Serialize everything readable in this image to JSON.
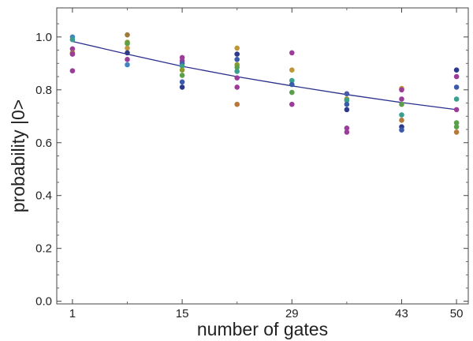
{
  "chart_data": {
    "type": "scatter",
    "xlabel": "number of gates",
    "ylabel": "probability |0>",
    "xlim": [
      -1,
      51.5
    ],
    "ylim": [
      -0.01,
      1.11
    ],
    "xticks": [
      1,
      15,
      29,
      43,
      50
    ],
    "xtick_labels": [
      "1",
      "15",
      "29",
      "43",
      "50"
    ],
    "yticks": [
      0.0,
      0.2,
      0.4,
      0.6,
      0.8,
      1.0
    ],
    "ytick_labels": [
      "0.0",
      "0.2",
      "0.4",
      "0.6",
      "0.8",
      "1.0"
    ],
    "grid": false,
    "fit_curve": {
      "x": [
        1,
        8,
        15,
        22,
        29,
        36,
        43,
        50
      ],
      "y": [
        0.983,
        0.935,
        0.889,
        0.85,
        0.815,
        0.782,
        0.752,
        0.725
      ],
      "color": "#2b2f8c"
    },
    "points": [
      {
        "x": 1,
        "y": 1.0,
        "color": "#3f86c2"
      },
      {
        "x": 1,
        "y": 0.99,
        "color": "#3a9e8f"
      },
      {
        "x": 1,
        "y": 0.955,
        "color": "#9c3c9a"
      },
      {
        "x": 1,
        "y": 0.94,
        "color": "#a07a3a"
      },
      {
        "x": 1,
        "y": 0.935,
        "color": "#9c3c9a"
      },
      {
        "x": 1,
        "y": 0.872,
        "color": "#9c3c9a"
      },
      {
        "x": 8,
        "y": 1.008,
        "color": "#a07a3a"
      },
      {
        "x": 8,
        "y": 0.98,
        "color": "#8a9a2a"
      },
      {
        "x": 8,
        "y": 0.975,
        "color": "#5aa04a"
      },
      {
        "x": 8,
        "y": 0.958,
        "color": "#c0963a"
      },
      {
        "x": 8,
        "y": 0.94,
        "color": "#2d3a8c"
      },
      {
        "x": 8,
        "y": 0.915,
        "color": "#9c3c9a"
      },
      {
        "x": 8,
        "y": 0.895,
        "color": "#3f86c2"
      },
      {
        "x": 15,
        "y": 0.922,
        "color": "#9c3c9a"
      },
      {
        "x": 15,
        "y": 0.91,
        "color": "#9c3c9a"
      },
      {
        "x": 15,
        "y": 0.9,
        "color": "#4a5aaa"
      },
      {
        "x": 15,
        "y": 0.89,
        "color": "#3a9e8f"
      },
      {
        "x": 15,
        "y": 0.875,
        "color": "#8a9a2a"
      },
      {
        "x": 15,
        "y": 0.855,
        "color": "#5aa04a"
      },
      {
        "x": 15,
        "y": 0.83,
        "color": "#3a5aaa"
      },
      {
        "x": 15,
        "y": 0.81,
        "color": "#2d3a8c"
      },
      {
        "x": 22,
        "y": 0.958,
        "color": "#c0963a"
      },
      {
        "x": 22,
        "y": 0.935,
        "color": "#2d3a8c"
      },
      {
        "x": 22,
        "y": 0.915,
        "color": "#3a5aaa"
      },
      {
        "x": 22,
        "y": 0.895,
        "color": "#8a9a2a"
      },
      {
        "x": 22,
        "y": 0.885,
        "color": "#5aa04a"
      },
      {
        "x": 22,
        "y": 0.87,
        "color": "#3a9e8f"
      },
      {
        "x": 22,
        "y": 0.845,
        "color": "#9c3c9a"
      },
      {
        "x": 22,
        "y": 0.81,
        "color": "#9c3c9a"
      },
      {
        "x": 22,
        "y": 0.745,
        "color": "#b8783a"
      },
      {
        "x": 29,
        "y": 0.94,
        "color": "#9c3c9a"
      },
      {
        "x": 29,
        "y": 0.875,
        "color": "#c0963a"
      },
      {
        "x": 29,
        "y": 0.835,
        "color": "#3a9e8f"
      },
      {
        "x": 29,
        "y": 0.82,
        "color": "#3a5aaa"
      },
      {
        "x": 29,
        "y": 0.79,
        "color": "#5aa04a"
      },
      {
        "x": 29,
        "y": 0.745,
        "color": "#9c3c9a"
      },
      {
        "x": 36,
        "y": 0.785,
        "color": "#4a5aaa"
      },
      {
        "x": 36,
        "y": 0.765,
        "color": "#8a9a2a"
      },
      {
        "x": 36,
        "y": 0.76,
        "color": "#3a9e8f"
      },
      {
        "x": 36,
        "y": 0.745,
        "color": "#3a5aaa"
      },
      {
        "x": 36,
        "y": 0.725,
        "color": "#2d3a8c"
      },
      {
        "x": 36,
        "y": 0.655,
        "color": "#9c3c9a"
      },
      {
        "x": 36,
        "y": 0.64,
        "color": "#9c3c9a"
      },
      {
        "x": 43,
        "y": 0.805,
        "color": "#c0963a"
      },
      {
        "x": 43,
        "y": 0.8,
        "color": "#9c3c9a"
      },
      {
        "x": 43,
        "y": 0.765,
        "color": "#9c3c9a"
      },
      {
        "x": 43,
        "y": 0.745,
        "color": "#5aa04a"
      },
      {
        "x": 43,
        "y": 0.705,
        "color": "#3a9e8f"
      },
      {
        "x": 43,
        "y": 0.685,
        "color": "#b8783a"
      },
      {
        "x": 43,
        "y": 0.66,
        "color": "#2d3a8c"
      },
      {
        "x": 43,
        "y": 0.648,
        "color": "#3a5aaa"
      },
      {
        "x": 50,
        "y": 0.875,
        "color": "#2d3a8c"
      },
      {
        "x": 50,
        "y": 0.85,
        "color": "#9c3c9a"
      },
      {
        "x": 50,
        "y": 0.81,
        "color": "#3a5aaa"
      },
      {
        "x": 50,
        "y": 0.765,
        "color": "#3a9e8f"
      },
      {
        "x": 50,
        "y": 0.725,
        "color": "#9c3c9a"
      },
      {
        "x": 50,
        "y": 0.675,
        "color": "#5aa04a"
      },
      {
        "x": 50,
        "y": 0.66,
        "color": "#5aa04a"
      },
      {
        "x": 50,
        "y": 0.64,
        "color": "#b8783a"
      }
    ]
  }
}
